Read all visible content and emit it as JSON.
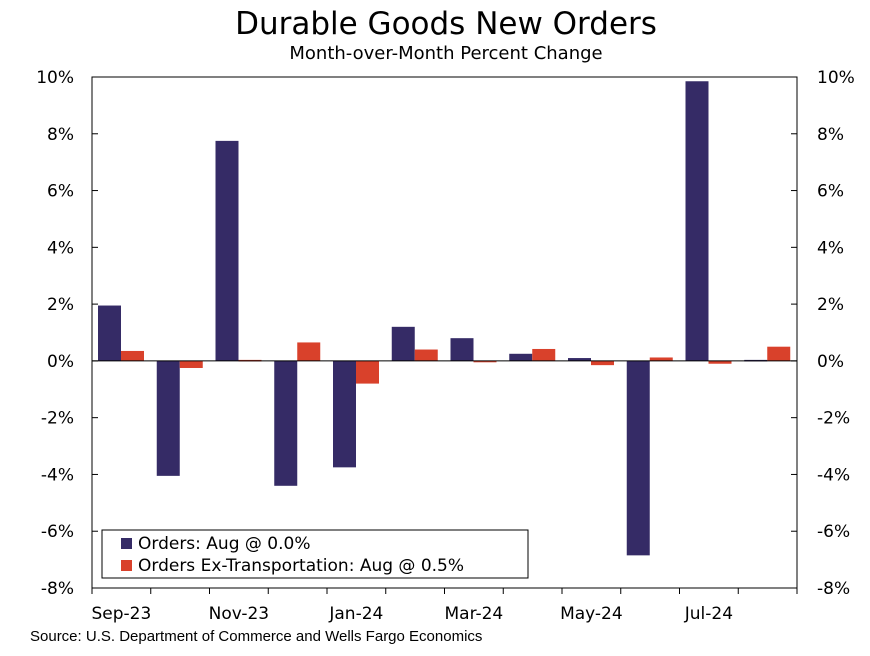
{
  "chart_data": {
    "type": "bar",
    "title": "Durable Goods New Orders",
    "subtitle": "Month-over-Month Percent Change",
    "categories": [
      "Sep-23",
      "Oct-23",
      "Nov-23",
      "Dec-23",
      "Jan-24",
      "Feb-24",
      "Mar-24",
      "Apr-24",
      "May-24",
      "Jun-24",
      "Jul-24",
      "Aug-24"
    ],
    "x_tick_labels": [
      "Sep-23",
      "Nov-23",
      "Jan-24",
      "Mar-24",
      "May-24",
      "Jul-24"
    ],
    "series": [
      {
        "name": "Orders",
        "legend_label": "Orders: Aug @ 0.0%",
        "color": "#352b66",
        "values": [
          1.95,
          -4.05,
          7.75,
          -4.4,
          -3.75,
          1.2,
          0.8,
          0.25,
          0.1,
          -6.85,
          9.85,
          0.0
        ]
      },
      {
        "name": "Orders Ex-Transportation",
        "legend_label": "Orders Ex-Transportation: Aug @ 0.5%",
        "color": "#d9412b",
        "values": [
          0.35,
          -0.25,
          0.0,
          0.65,
          -0.8,
          0.4,
          -0.05,
          0.42,
          -0.15,
          0.12,
          -0.1,
          0.5
        ]
      }
    ],
    "ylim": [
      -8,
      10
    ],
    "y_ticks": [
      -8,
      -6,
      -4,
      -2,
      0,
      2,
      4,
      6,
      8,
      10
    ],
    "y_tick_labels": [
      "-8%",
      "-6%",
      "-4%",
      "-2%",
      "0%",
      "2%",
      "4%",
      "6%",
      "8%",
      "10%"
    ],
    "xlabel": "",
    "ylabel": "",
    "legend_position": "bottom-left",
    "grid": false
  },
  "source": "Source: U.S. Department of Commerce and Wells Fargo Economics"
}
